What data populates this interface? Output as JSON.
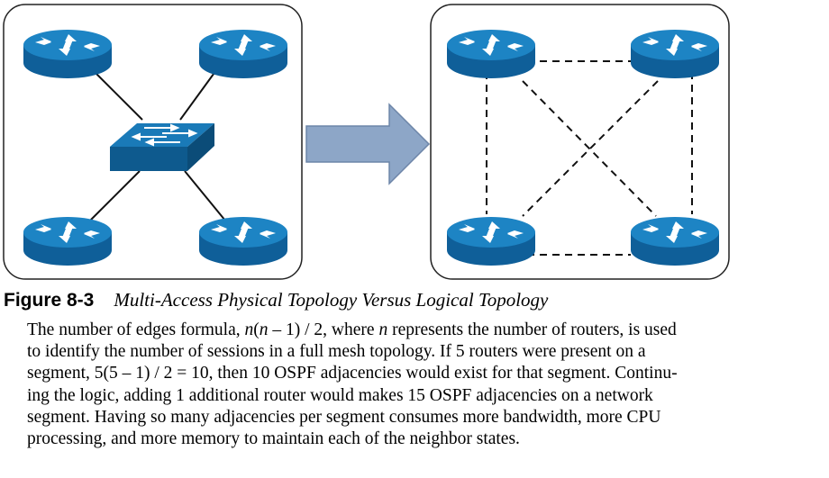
{
  "figure": {
    "left_panel": {
      "name": "Physical Topology",
      "router_count": 4,
      "has_switch": true
    },
    "right_panel": {
      "name": "Logical Topology",
      "router_count": 4,
      "full_mesh": true
    },
    "colors": {
      "router_top": "#1d84c4",
      "router_side": "#0f5f99",
      "switch_top": "#1a7ab8",
      "switch_side": "#0e5a8e",
      "arrow_fill": "#8da6c7",
      "arrow_stroke": "#6d85a8",
      "panel_border": "#222222"
    }
  },
  "caption": {
    "label": "Figure 8-3",
    "text": "Multi-Access Physical Topology Versus Logical Topology"
  },
  "body": {
    "l1a": "The number of edges formula, ",
    "l1b": "n",
    "l1c": "(",
    "l1d": "n",
    "l1e": " – 1) / 2, where ",
    "l1f": "n",
    "l1g": " represents the number of routers, is used",
    "l2": "to identify the number of sessions in a full mesh topology. If 5 routers were present on a",
    "l3": "segment, 5(5 – 1) / 2 = 10, then 10 OSPF adjacencies would exist for that segment. Continu-",
    "l4": "ing the logic, adding 1 additional router would makes 15 OSPF adjacencies on a network",
    "l5": "segment. Having so many adjacencies per segment consumes more bandwidth, more CPU",
    "l6": "processing, and more memory to maintain each of the neighbor states."
  }
}
